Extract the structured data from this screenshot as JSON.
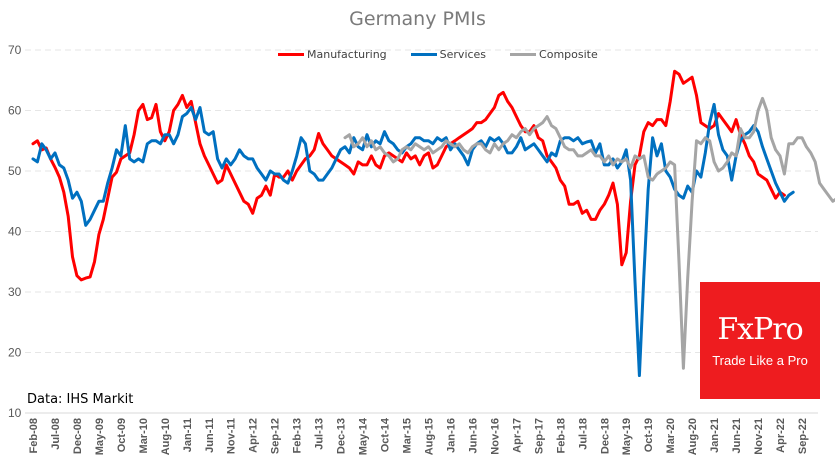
{
  "chart_data": {
    "type": "line",
    "title": "Germany PMIs",
    "xlabel": "",
    "ylabel": "",
    "ylim": [
      10,
      70
    ],
    "yticks": [
      10,
      20,
      30,
      40,
      50,
      60,
      70
    ],
    "grid": true,
    "legend_position": "top-center",
    "x_start": "Feb-08",
    "x_end": "Sep-22",
    "xtick_labels": [
      "Feb-08",
      "Jul-08",
      "Dec-08",
      "May-09",
      "Oct-09",
      "Mar-10",
      "Aug-10",
      "Jan-11",
      "Jun-11",
      "Nov-11",
      "Apr-12",
      "Sep-12",
      "Feb-13",
      "Jul-13",
      "Dec-13",
      "May-14",
      "Oct-14",
      "Mar-15",
      "Aug-15",
      "Jan-16",
      "Jun-16",
      "Nov-16",
      "Apr-17",
      "Sep-17",
      "Feb-18",
      "Jul-18",
      "Dec-18",
      "May-19",
      "Oct-19",
      "Mar-20",
      "Aug-20",
      "Jan-21",
      "Jun-21",
      "Nov-21",
      "Apr-22",
      "Sep-22"
    ],
    "annotation": "Data: IHS Markit",
    "series": [
      {
        "name": "Manufacturing",
        "color": "#ff0000",
        "start": "Feb-08",
        "values": [
          54.5,
          55.0,
          53.5,
          53.8,
          52.0,
          50.6,
          49.0,
          46.5,
          42.5,
          35.8,
          32.7,
          32.0,
          32.3,
          32.5,
          35.0,
          39.5,
          42.0,
          45.5,
          49.0,
          49.8,
          52.0,
          52.5,
          53.0,
          56.0,
          60.0,
          61.0,
          58.5,
          58.8,
          61.0,
          56.5,
          55.0,
          56.5,
          60.0,
          61.0,
          62.5,
          60.5,
          61.5,
          58.0,
          54.5,
          52.5,
          51.0,
          49.5,
          48.0,
          48.5,
          51.0,
          49.5,
          48.0,
          46.5,
          45.0,
          44.5,
          43.0,
          45.5,
          46.0,
          47.5,
          46.0,
          49.5,
          49.0,
          49.0,
          50.0,
          48.5,
          50.0,
          51.0,
          52.0,
          52.5,
          53.5,
          56.2,
          54.5,
          53.5,
          52.5,
          52.0,
          51.5,
          51.0,
          50.5,
          49.5,
          51.5,
          51.0,
          51.0,
          52.5,
          51.0,
          50.5,
          52.5,
          53.0,
          52.5,
          52.0,
          51.5,
          53.0,
          52.0,
          52.5,
          51.0,
          52.5,
          53.0,
          50.5,
          51.0,
          52.5,
          54.0,
          54.5,
          55.0,
          55.5,
          56.0,
          56.5,
          57.0,
          58.0,
          58.0,
          58.5,
          59.5,
          60.5,
          62.5,
          63.0,
          61.5,
          60.5,
          59.0,
          57.5,
          56.5,
          56.5,
          57.5,
          55.5,
          55.0,
          52.5,
          51.5,
          50.5,
          48.5,
          47.5,
          44.5,
          44.5,
          45.0,
          43.0,
          43.5,
          42.0,
          42.0,
          43.5,
          44.5,
          46.0,
          48.0,
          44.5,
          34.5,
          36.5,
          45.0,
          51.0,
          52.5,
          56.5,
          58.0,
          57.5,
          58.5,
          58.5,
          57.5,
          61.5,
          66.5,
          66.0,
          64.5,
          65.0,
          65.5,
          62.5,
          58.0,
          57.5,
          57.0,
          57.5,
          59.5,
          58.5,
          57.5,
          56.5,
          58.5,
          56.0,
          54.5,
          52.5,
          51.5,
          49.5,
          49.0,
          48.5,
          47.0,
          45.5,
          46.5,
          46.0
        ],
        "note": "Values approximated from the plotted line (monthly, approx.)"
      },
      {
        "name": "Services",
        "color": "#0070c0",
        "start": "Feb-08",
        "values": [
          52.0,
          51.5,
          54.5,
          53.5,
          52.0,
          53.0,
          51.0,
          50.5,
          48.5,
          45.5,
          46.5,
          45.0,
          41.0,
          42.0,
          43.5,
          45.0,
          45.0,
          48.0,
          50.5,
          53.5,
          52.5,
          57.5,
          52.0,
          51.5,
          52.0,
          51.5,
          54.5,
          55.0,
          55.0,
          54.5,
          56.0,
          56.0,
          54.5,
          56.0,
          59.0,
          59.5,
          60.5,
          58.5,
          60.5,
          56.5,
          56.0,
          56.5,
          52.0,
          50.5,
          52.0,
          51.0,
          52.0,
          53.5,
          52.5,
          52.0,
          52.0,
          50.5,
          49.5,
          48.5,
          50.0,
          49.5,
          49.5,
          48.5,
          48.0,
          50.0,
          52.5,
          55.5,
          54.5,
          50.0,
          49.5,
          48.5,
          48.5,
          49.5,
          50.5,
          52.0,
          53.5,
          54.0,
          53.0,
          55.5,
          54.0,
          53.5,
          56.0,
          54.0,
          55.0,
          54.5,
          56.5,
          55.0,
          54.5,
          53.5,
          53.0,
          54.0,
          54.5,
          55.5,
          55.5,
          55.0,
          55.0,
          54.5,
          55.5,
          55.0,
          55.5,
          53.5,
          54.5,
          53.5,
          52.5,
          51.0,
          53.5,
          54.5,
          55.0,
          54.0,
          55.5,
          55.0,
          55.5,
          54.5,
          53.0,
          53.0,
          54.0,
          55.5,
          53.5,
          54.0,
          54.5,
          53.5,
          52.5,
          51.5,
          53.0,
          52.5,
          55.0,
          55.5,
          55.5,
          55.0,
          55.5,
          54.5,
          54.8,
          55.0,
          53.0,
          54.5,
          51.0,
          51.0,
          52.0,
          50.5,
          51.5,
          53.5,
          48.5,
          31.7,
          16.2,
          32.5,
          47.0,
          55.5,
          52.5,
          54.5,
          50.0,
          49.0,
          47.0,
          46.0,
          45.5,
          47.5,
          46.5,
          50.0,
          49.0,
          53.0,
          58.0,
          61.0,
          56.0,
          53.5,
          52.5,
          48.5,
          52.5,
          55.0,
          56.0,
          56.5,
          57.5,
          56.5,
          54.0,
          52.0,
          50.0,
          48.0,
          46.5,
          45.0,
          46.0,
          46.5
        ],
        "note": "Values approximated from the plotted line (monthly, approx.)"
      },
      {
        "name": "Composite",
        "color": "#a5a5a5",
        "start": "Jan-14",
        "values": [
          55.5,
          56.0,
          54.0,
          54.5,
          55.5,
          54.0,
          55.0,
          53.5,
          54.0,
          53.0,
          52.5,
          51.5,
          52.0,
          53.5,
          54.0,
          53.5,
          54.5,
          54.0,
          53.5,
          54.0,
          53.0,
          53.5,
          54.0,
          55.0,
          54.5,
          54.0,
          54.5,
          53.5,
          53.0,
          54.0,
          54.5,
          54.5,
          53.5,
          53.0,
          54.5,
          53.5,
          54.5,
          55.0,
          56.0,
          55.5,
          56.5,
          57.0,
          56.0,
          57.0,
          57.5,
          58.0,
          59.0,
          57.5,
          57.0,
          55.5,
          54.0,
          53.5,
          53.5,
          52.5,
          52.5,
          53.0,
          53.5,
          52.5,
          52.5,
          51.5,
          52.5,
          51.0,
          52.0,
          51.5,
          52.0,
          50.5,
          52.5,
          52.0,
          52.5,
          49.0,
          48.5,
          49.5,
          50.0,
          50.5,
          51.5,
          51.0,
          35.0,
          17.4,
          32.3,
          45.0,
          55.0,
          54.5,
          55.5,
          55.0,
          51.5,
          50.0,
          50.5,
          51.5,
          53.0,
          52.5,
          57.0,
          55.5,
          55.5,
          56.5,
          60.0,
          62.0,
          60.0,
          55.5,
          53.5,
          52.5,
          49.5,
          54.5,
          54.5,
          55.5,
          55.5,
          54.0,
          53.0,
          51.5,
          48.0,
          47.0,
          46.0,
          45.0,
          45.5,
          46.0
        ],
        "note": "Values approximated from the plotted line (monthly, approx.)"
      }
    ]
  },
  "branding": {
    "name": "FxPro",
    "tagline": "Trade Like a Pro",
    "color": "#ee1c1f"
  }
}
